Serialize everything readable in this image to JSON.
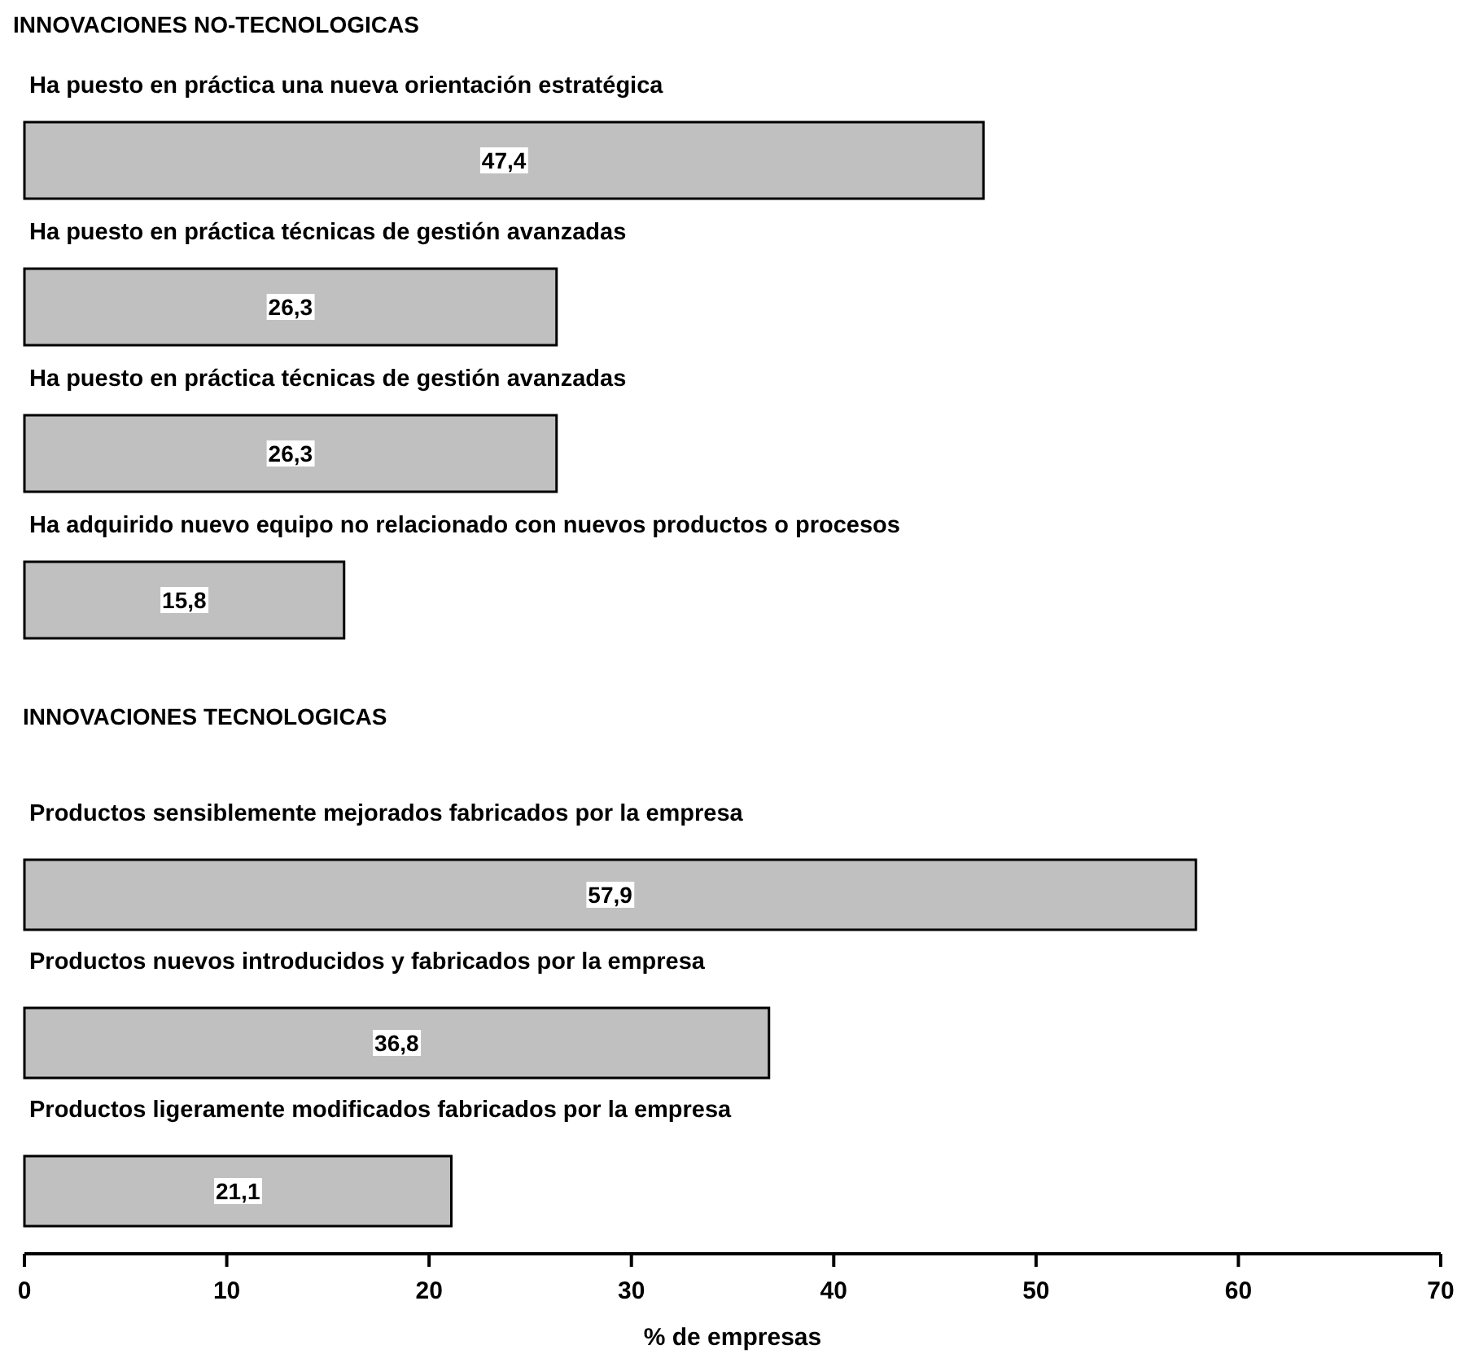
{
  "chart_data": [
    {
      "type": "bar",
      "orientation": "horizontal",
      "title": "INNOVACIONES  NO-TECNOLOGICAS",
      "categories": [
        "Ha puesto en práctica una nueva orientación estratégica",
        "Ha puesto en práctica técnicas de gestión avanzadas",
        "Ha puesto en práctica técnicas de gestión avanzadas",
        "Ha adquirido nuevo equipo no relacionado con nuevos productos o procesos"
      ],
      "values": [
        47.4,
        26.3,
        26.3,
        15.8
      ],
      "value_labels": [
        "47,4",
        "26,3",
        "26,3",
        "15,8"
      ],
      "color": "#c0c0c0",
      "xlim": [
        0,
        70
      ]
    },
    {
      "type": "bar",
      "orientation": "horizontal",
      "title": "INNOVACIONES TECNOLOGICAS",
      "categories": [
        "Productos sensiblemente mejorados fabricados por la empresa",
        "Productos nuevos introducidos y fabricados por la empresa",
        "Productos ligeramente modificados fabricados por la empresa"
      ],
      "values": [
        57.9,
        36.8,
        21.1
      ],
      "value_labels": [
        "57,9",
        "36,8",
        "21,1"
      ],
      "color": "#c0c0c0",
      "xlim": [
        0,
        70
      ],
      "xticks": [
        0,
        10,
        20,
        30,
        40,
        50,
        60,
        70
      ],
      "xlabel": "% de empresas"
    }
  ]
}
